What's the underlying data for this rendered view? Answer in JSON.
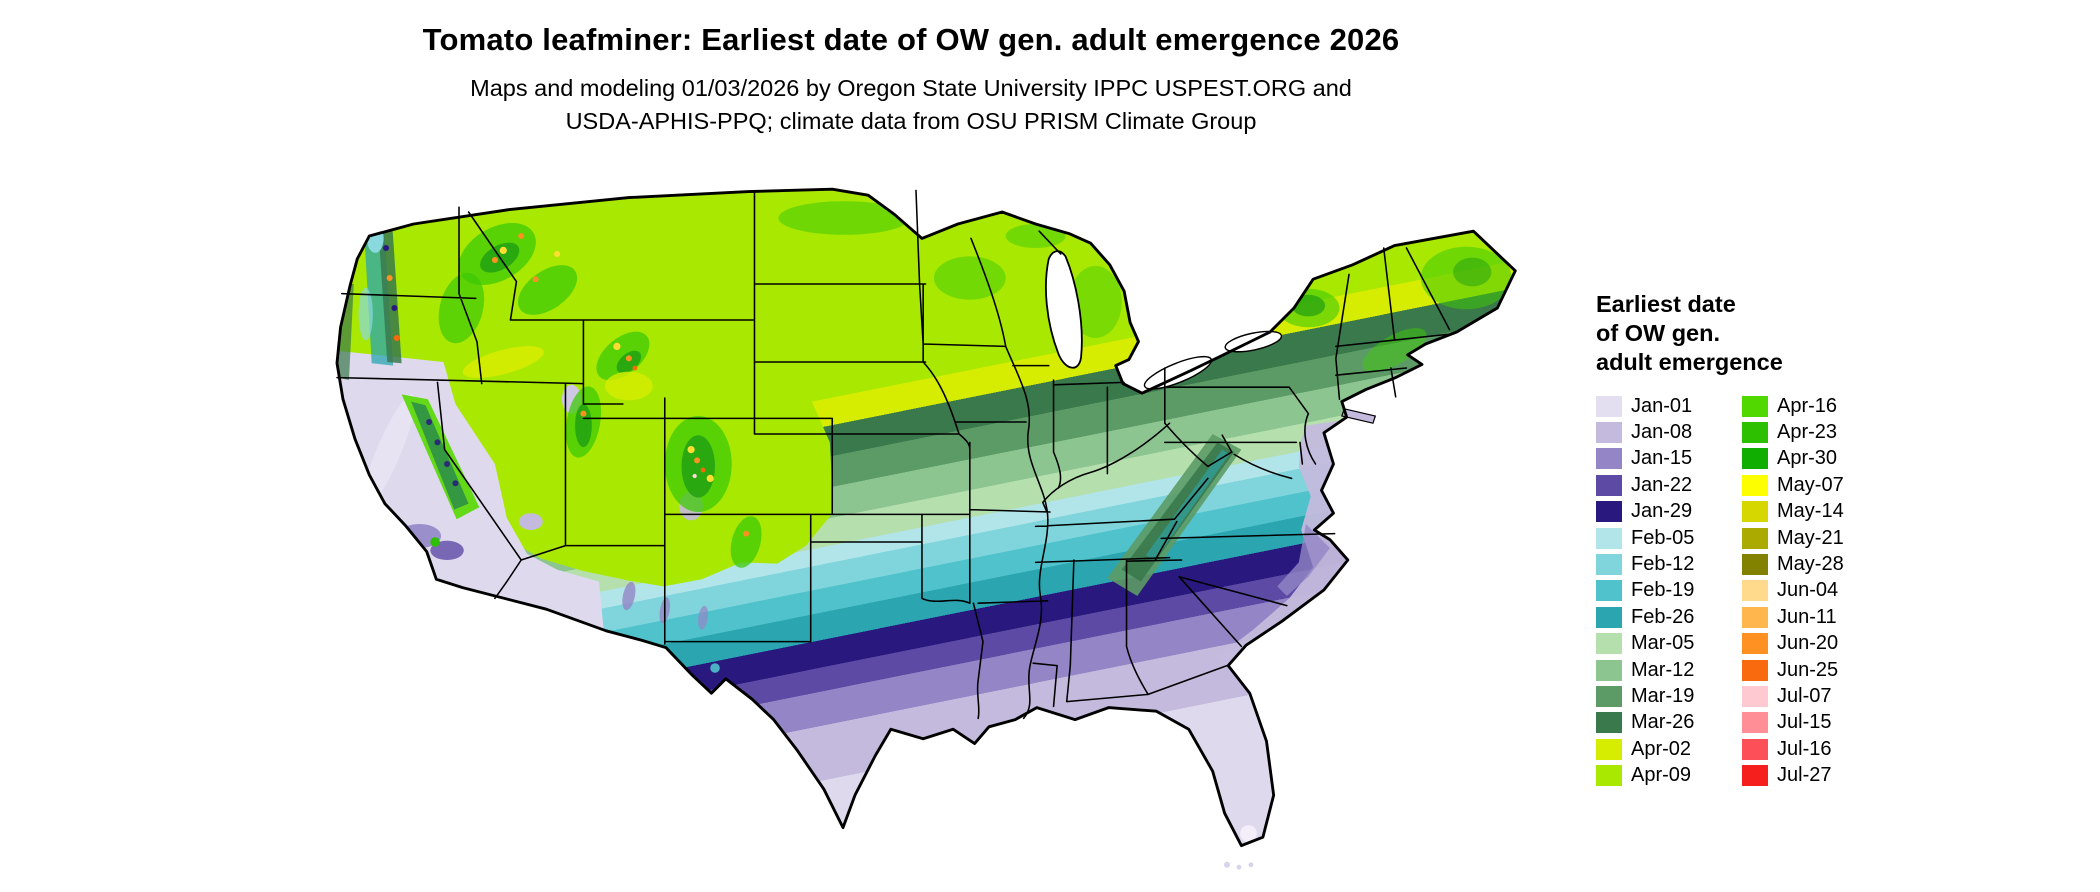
{
  "header": {
    "title": "Tomato leafminer: Earliest date of OW gen. adult emergence 2026",
    "subtitle_line1": "Maps and modeling 01/03/2026 by Oregon State University IPPC USPEST.ORG and",
    "subtitle_line2": "USDA-APHIS-PPQ; climate data from OSU PRISM Climate Group"
  },
  "map": {
    "region": "Contiguous United States",
    "kind": "choropleth raster map of earliest overwintering generation adult emergence date",
    "background_color": "#ffffff",
    "boundary_color": "#000000"
  },
  "legend": {
    "title_line1": "Earliest date",
    "title_line2": "of OW gen.",
    "title_line3": "adult emergence",
    "column1": [
      {
        "label": "Jan-01",
        "color": "#e4dff0"
      },
      {
        "label": "Jan-08",
        "color": "#c4badd"
      },
      {
        "label": "Jan-15",
        "color": "#9486c6"
      },
      {
        "label": "Jan-22",
        "color": "#5c4aa5"
      },
      {
        "label": "Jan-29",
        "color": "#29197f"
      },
      {
        "label": "Feb-05",
        "color": "#b2e5ea"
      },
      {
        "label": "Feb-12",
        "color": "#7fd5db"
      },
      {
        "label": "Feb-19",
        "color": "#4fc2cb"
      },
      {
        "label": "Feb-26",
        "color": "#2ba6b0"
      },
      {
        "label": "Mar-05",
        "color": "#b5e0ad"
      },
      {
        "label": "Mar-12",
        "color": "#8dc591"
      },
      {
        "label": "Mar-19",
        "color": "#5c9b66"
      },
      {
        "label": "Mar-26",
        "color": "#3a794b"
      },
      {
        "label": "Apr-02",
        "color": "#d6ec00"
      },
      {
        "label": "Apr-09",
        "color": "#a9e800"
      }
    ],
    "column2": [
      {
        "label": "Apr-16",
        "color": "#50d800"
      },
      {
        "label": "Apr-23",
        "color": "#2cc000"
      },
      {
        "label": "Apr-30",
        "color": "#0fae00"
      },
      {
        "label": "May-07",
        "color": "#fdff00"
      },
      {
        "label": "May-14",
        "color": "#d6d600"
      },
      {
        "label": "May-21",
        "color": "#aaaa00"
      },
      {
        "label": "May-28",
        "color": "#828200"
      },
      {
        "label": "Jun-04",
        "color": "#ffd98c"
      },
      {
        "label": "Jun-11",
        "color": "#ffb74d"
      },
      {
        "label": "Jun-20",
        "color": "#ff9022"
      },
      {
        "label": "Jun-25",
        "color": "#f9690e"
      },
      {
        "label": "Jul-07",
        "color": "#ffc9d2"
      },
      {
        "label": "Jul-15",
        "color": "#ff8e96"
      },
      {
        "label": "Jul-16",
        "color": "#fc4f58"
      },
      {
        "label": "Jul-27",
        "color": "#f5201e"
      }
    ]
  }
}
